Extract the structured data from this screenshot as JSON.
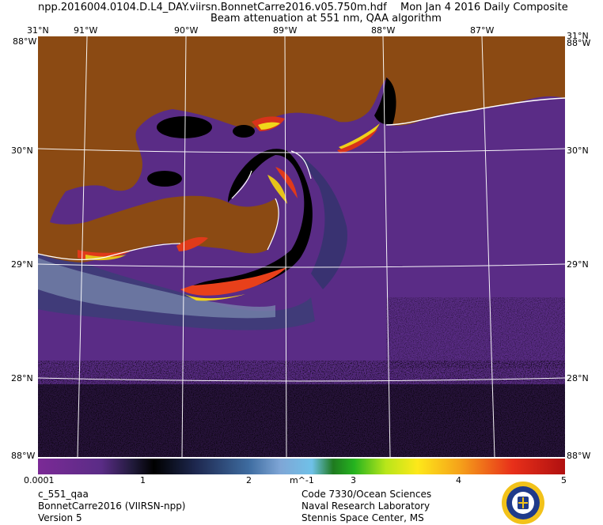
{
  "header": {
    "filename": "npp.2016004.0104.D.L4_DAY.viirsn.BonnetCarre2016.v05.750m.hdf",
    "date": "Mon Jan  4 2016 Daily Composite",
    "product": "Beam attenuation at 551 nm, QAA algorithm"
  },
  "map": {
    "lon_labels": [
      "91°W",
      "90°W",
      "89°W",
      "88°W",
      "87°W"
    ],
    "lat_labels": [
      "31°N",
      "30°N",
      "29°N",
      "28°N"
    ],
    "corner_top_left": "31°N",
    "corner_top_right": "31°N",
    "corner_bottom_left": "88°W",
    "corner_bottom_right": "88°W",
    "colors": {
      "land": "#8c4a12",
      "water": "#5b2c86",
      "no_data": "#000000",
      "coast": "#ffffff"
    }
  },
  "colorbar": {
    "ticks": [
      "0.0001",
      "1",
      "2",
      "m^-1",
      "3",
      "4",
      "5"
    ],
    "min": 0.0001,
    "max": 5,
    "units": "m^-1"
  },
  "footer": {
    "left": [
      "c_551_qaa",
      "BonnetCarre2016 (VIIRSN-npp)",
      "Version 5"
    ],
    "right": [
      "Code 7330/Ocean Sciences",
      "Naval Research Laboratory",
      "Stennis Space Center, MS"
    ]
  }
}
